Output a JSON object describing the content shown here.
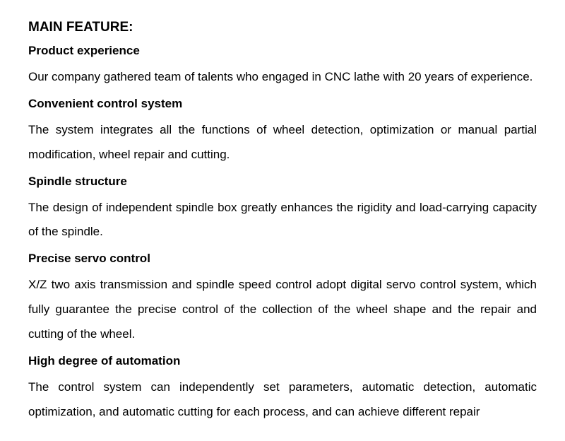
{
  "mainTitle": "MAIN FEATURE:",
  "sections": [
    {
      "title": "Product experience",
      "text": "Our company gathered team of talents who engaged in CNC lathe with 20 years of experience."
    },
    {
      "title": "Convenient control system",
      "text": "The system integrates all the functions of wheel detection, optimization or manual partial modification, wheel repair and cutting."
    },
    {
      "title": "Spindle structure",
      "text": "The design of independent spindle box greatly enhances the rigidity and load-carrying capacity of the spindle."
    },
    {
      "title": "Precise servo control",
      "text": "X/Z two axis transmission and spindle speed control adopt digital servo control system, which fully guarantee the precise control of the collection of the wheel shape and the repair and cutting of the wheel."
    },
    {
      "title": "High degree of automation",
      "text": "The control system can independently set parameters, automatic detection, automatic optimization, and automatic cutting for each process, and can achieve different repair"
    }
  ],
  "styling": {
    "background_color": "#ffffff",
    "text_color": "#000000",
    "main_title_fontsize": 19,
    "section_title_fontsize": 17,
    "section_text_fontsize": 17,
    "line_height": 2.05,
    "font_family": "Arial"
  }
}
